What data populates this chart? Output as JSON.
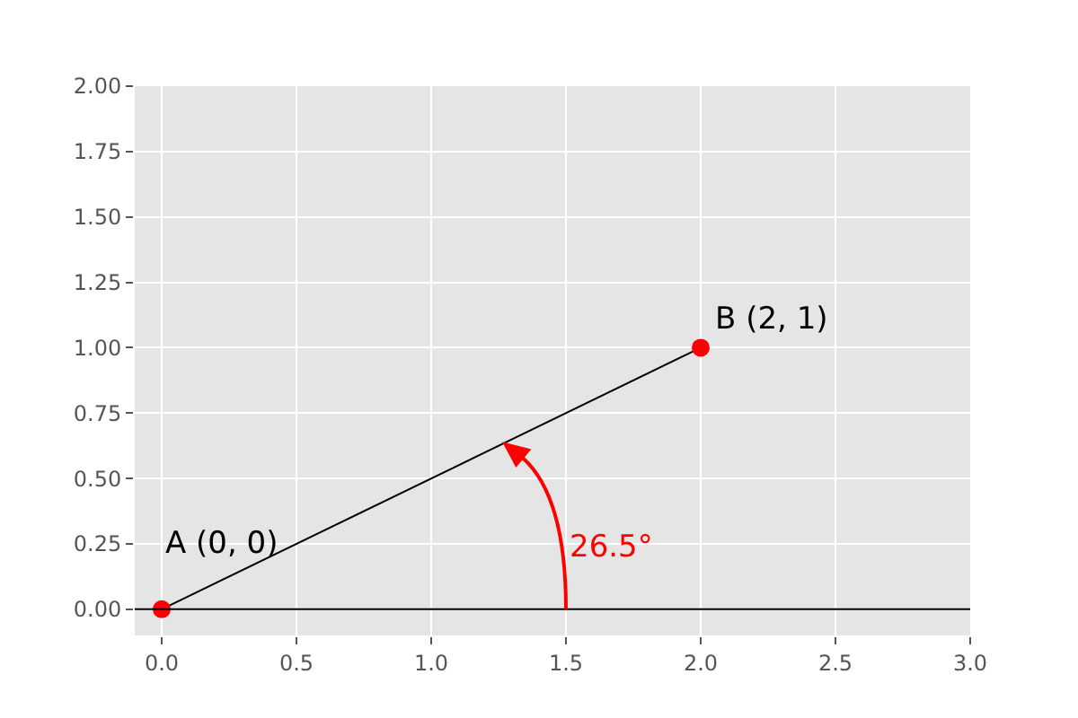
{
  "chart_data": {
    "type": "line",
    "series": [
      {
        "x": [
          0,
          2
        ],
        "values": [
          0,
          1
        ],
        "color": "#000000",
        "colors": [
          "#ff0000",
          "#ff0000"
        ],
        "marker": "circle"
      }
    ],
    "annotations": [
      "A (0, 0)",
      "B (2, 1)",
      "26.5°"
    ],
    "ref_lines": [
      {
        "axis": "y",
        "value": 0,
        "color": "#000000"
      }
    ],
    "xlim": [
      -0.1,
      3.0
    ],
    "xticks": [
      {
        "value": 0,
        "label": "0.0"
      },
      0.5,
      {
        "value": 1,
        "label": "1.0"
      },
      1.5,
      {
        "value": 2,
        "label": "2.0"
      },
      2.5,
      {
        "value": 3,
        "label": "3.0"
      }
    ],
    "ylim": [
      -0.1,
      2.0
    ],
    "yticks": [
      {
        "value": 0,
        "label": "0.00"
      },
      0.25,
      {
        "value": 0.5,
        "label": "0.50"
      },
      0.75,
      {
        "value": 1,
        "label": "1.00"
      },
      1.25,
      {
        "value": 1.5,
        "label": "1.50"
      },
      1.75,
      {
        "value": 2,
        "label": "2.00"
      }
    ],
    "grid": true
  }
}
